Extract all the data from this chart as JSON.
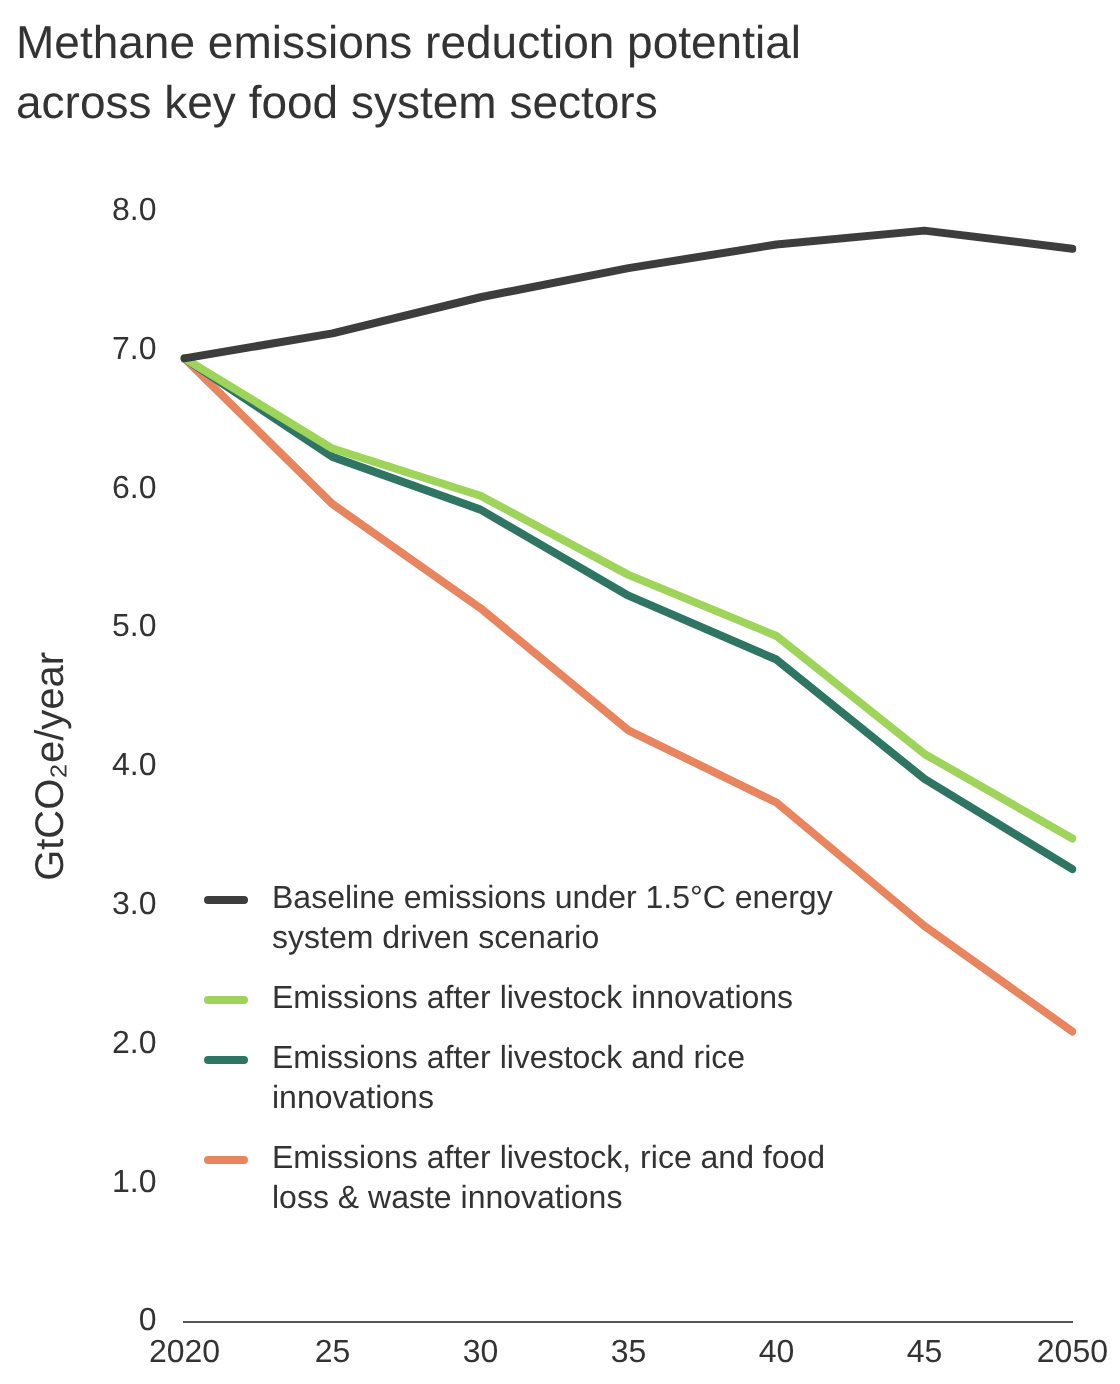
{
  "chart_data": {
    "type": "line",
    "title": "Methane emissions reduction potential across key food system sectors",
    "ylabel": "GtCO₂e/year",
    "categories": [
      "2020",
      "25",
      "30",
      "35",
      "40",
      "45",
      "2050"
    ],
    "series": [
      {
        "name": "Baseline emissions under 1.5°C energy system driven scenario",
        "color": "#3d3d3d",
        "values": [
          6.94,
          7.12,
          7.38,
          7.59,
          7.76,
          7.86,
          7.73
        ]
      },
      {
        "name": "Emissions after livestock innovations",
        "color": "#9ed45a",
        "values": [
          6.94,
          6.29,
          5.95,
          5.38,
          4.94,
          4.09,
          3.48
        ]
      },
      {
        "name": "Emissions after livestock and rice innovations",
        "color": "#2e7564",
        "values": [
          6.94,
          6.23,
          5.85,
          5.23,
          4.77,
          3.91,
          3.26
        ]
      },
      {
        "name": "Emissions after livestock, rice and food loss & waste innovations",
        "color": "#e8845e",
        "values": [
          6.94,
          5.89,
          5.14,
          4.26,
          3.74,
          2.85,
          2.09
        ]
      }
    ],
    "ylim": [
      0,
      8
    ],
    "yticks": [
      {
        "value": 0,
        "label": "0"
      },
      {
        "value": 1,
        "label": "1.0"
      },
      {
        "value": 2,
        "label": "2.0"
      },
      {
        "value": 3,
        "label": "3.0"
      },
      {
        "value": 4,
        "label": "4.0"
      },
      {
        "value": 5,
        "label": "5.0"
      },
      {
        "value": 6,
        "label": "6.0"
      },
      {
        "value": 7,
        "label": "7.0"
      },
      {
        "value": 8,
        "label": "8.0"
      }
    ],
    "grid": false,
    "legend": "bottom left",
    "marker": "none",
    "line_style": "solid"
  }
}
